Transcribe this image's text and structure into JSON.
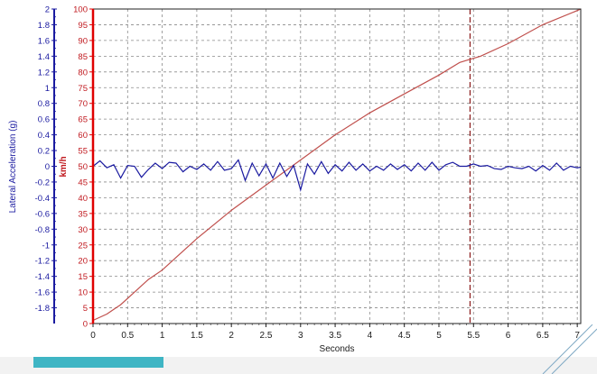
{
  "chart_data": {
    "type": "line",
    "title": "",
    "xlabel": "Seconds",
    "xlim": [
      0,
      7.05
    ],
    "xticks": [
      "0",
      "0.5",
      "1",
      "1.5",
      "2",
      "2.5",
      "3",
      "3.5",
      "4",
      "4.5",
      "5",
      "5.5",
      "6",
      "6.5",
      "7"
    ],
    "y_left": {
      "label": "Lateral Acceleration (g)",
      "color": "#1a1aa0",
      "ylim": [
        -2,
        2
      ],
      "ticks": [
        "2",
        "1.8",
        "1.6",
        "1.4",
        "1.2",
        "1",
        "0.8",
        "0.6",
        "0.4",
        "0.2",
        "0",
        "-0.2",
        "-0.4",
        "-0.6",
        "-0.8",
        "-1",
        "-1.2",
        "-1.4",
        "-1.6",
        "-1.8"
      ]
    },
    "y_right": {
      "label": "km/h",
      "color": "#c0191f",
      "ylim": [
        0,
        100
      ],
      "ticks": [
        "100",
        "95",
        "90",
        "85",
        "80",
        "75",
        "70",
        "65",
        "60",
        "55",
        "50",
        "45",
        "40",
        "35",
        "30",
        "25",
        "20",
        "15",
        "10",
        "5",
        "0"
      ]
    },
    "grid": true,
    "marker_x": 5.45,
    "series": [
      {
        "color": "#c0504d",
        "axis": "right",
        "x": [
          0,
          0.2,
          0.4,
          0.6,
          0.8,
          1.0,
          1.2,
          1.5,
          2.0,
          2.5,
          3.0,
          3.5,
          4.0,
          4.5,
          5.0,
          5.3,
          5.45,
          5.6,
          6.0,
          6.5,
          7.0,
          7.05
        ],
        "values": [
          1,
          3,
          6,
          10,
          14,
          17,
          21,
          27,
          36,
          44,
          52,
          60,
          67,
          73,
          79,
          83,
          84,
          85,
          89,
          95,
          99.5,
          100
        ]
      },
      {
        "color": "#1a1aa0",
        "axis": "left",
        "x": [
          0,
          0.1,
          0.2,
          0.3,
          0.4,
          0.5,
          0.6,
          0.7,
          0.8,
          0.9,
          1.0,
          1.1,
          1.2,
          1.3,
          1.4,
          1.5,
          1.6,
          1.7,
          1.8,
          1.9,
          2.0,
          2.1,
          2.2,
          2.3,
          2.4,
          2.5,
          2.6,
          2.7,
          2.8,
          2.9,
          3.0,
          3.1,
          3.2,
          3.3,
          3.4,
          3.5,
          3.6,
          3.7,
          3.8,
          3.9,
          4.0,
          4.1,
          4.2,
          4.3,
          4.4,
          4.5,
          4.6,
          4.7,
          4.8,
          4.9,
          5.0,
          5.1,
          5.2,
          5.3,
          5.4,
          5.5,
          5.6,
          5.7,
          5.8,
          5.9,
          6.0,
          6.1,
          6.2,
          6.3,
          6.4,
          6.5,
          6.6,
          6.7,
          6.8,
          6.9,
          7.0,
          7.05
        ],
        "values": [
          0,
          0.07,
          -0.02,
          0.02,
          -0.15,
          0.01,
          0.0,
          -0.14,
          -0.04,
          0.04,
          -0.03,
          0.05,
          0.04,
          -0.07,
          0.0,
          -0.04,
          0.03,
          -0.05,
          0.06,
          -0.05,
          -0.03,
          0.08,
          -0.18,
          0.04,
          -0.12,
          0.03,
          -0.15,
          0.04,
          -0.13,
          0.01,
          -0.3,
          0.03,
          -0.1,
          0.06,
          -0.09,
          0.02,
          -0.06,
          0.05,
          -0.05,
          0.03,
          -0.06,
          0.0,
          -0.05,
          0.03,
          -0.04,
          0.02,
          -0.06,
          0.04,
          -0.05,
          0.05,
          -0.05,
          0.02,
          0.05,
          0.0,
          0.0,
          0.03,
          0.0,
          0.01,
          -0.03,
          -0.04,
          0.0,
          -0.02,
          -0.03,
          0.0,
          -0.06,
          0.01,
          -0.05,
          0.04,
          -0.05,
          0.0,
          -0.02,
          -0.01
        ]
      }
    ]
  }
}
